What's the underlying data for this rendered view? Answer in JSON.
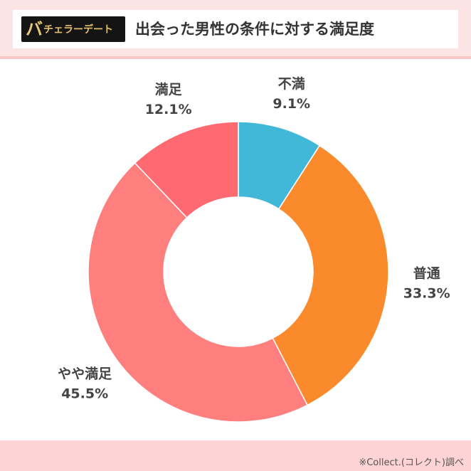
{
  "header": {
    "logo_big": "バ",
    "logo_small": "チェラーデート",
    "title": "出会った男性の条件に対する満足度"
  },
  "footer": {
    "source": "※Collect.(コレクト)調べ"
  },
  "chart_data": {
    "type": "donut",
    "title": "出会った男性の条件に対する満足度",
    "start_angle_deg": 0,
    "direction": "clockwise",
    "slices": [
      {
        "label": "不満",
        "value": 9.1,
        "value_label": "9.1%",
        "color": "#42b8d8"
      },
      {
        "label": "普通",
        "value": 33.3,
        "value_label": "33.3%",
        "color": "#fa8a2b"
      },
      {
        "label": "やや満足",
        "value": 45.5,
        "value_label": "45.5%",
        "color": "#ff7e7e"
      },
      {
        "label": "満足",
        "value": 12.1,
        "value_label": "12.1%",
        "color": "#ff6a72"
      }
    ]
  }
}
